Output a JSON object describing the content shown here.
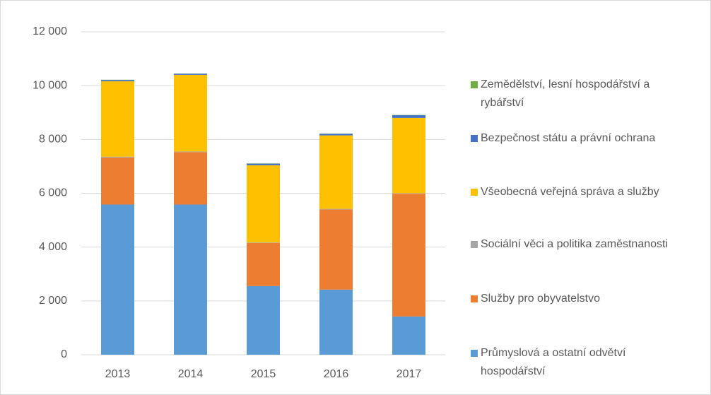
{
  "chart_data": {
    "type": "bar",
    "stacked": true,
    "categories": [
      "2013",
      "2014",
      "2015",
      "2016",
      "2017"
    ],
    "series": [
      {
        "name": "Průmyslová a ostatní odvětví hospodářství",
        "color": "#5b9bd5",
        "values": [
          5580,
          5580,
          2550,
          2420,
          1420
        ]
      },
      {
        "name": "Služby pro obyvatelstvo",
        "color": "#ed7d31",
        "values": [
          1750,
          1950,
          1600,
          2980,
          4560
        ]
      },
      {
        "name": "Sociální věci a politika zaměstnanosti",
        "color": "#a5a5a5",
        "values": [
          30,
          20,
          20,
          20,
          20
        ]
      },
      {
        "name": "Všeobecná veřejná správa a služby",
        "color": "#ffc000",
        "values": [
          2800,
          2850,
          2870,
          2730,
          2800
        ]
      },
      {
        "name": "Bezpečnost státu a právní ochrana",
        "color": "#4472c4",
        "values": [
          50,
          40,
          60,
          60,
          100
        ]
      },
      {
        "name": "Zemědělství, lesní hospodářství a rybářství",
        "color": "#70ad47",
        "values": [
          10,
          10,
          10,
          10,
          10
        ]
      }
    ],
    "ylim": [
      0,
      12000
    ],
    "yticks": [
      0,
      {
        "value": 2000,
        "label": "2 000"
      },
      {
        "value": 4000,
        "label": "4 000"
      },
      {
        "value": 6000,
        "label": "6 000"
      },
      {
        "value": 8000,
        "label": "8 000"
      },
      {
        "value": 10000,
        "label": "10 000"
      },
      {
        "value": 12000,
        "label": "12 000"
      }
    ],
    "grid": true
  }
}
